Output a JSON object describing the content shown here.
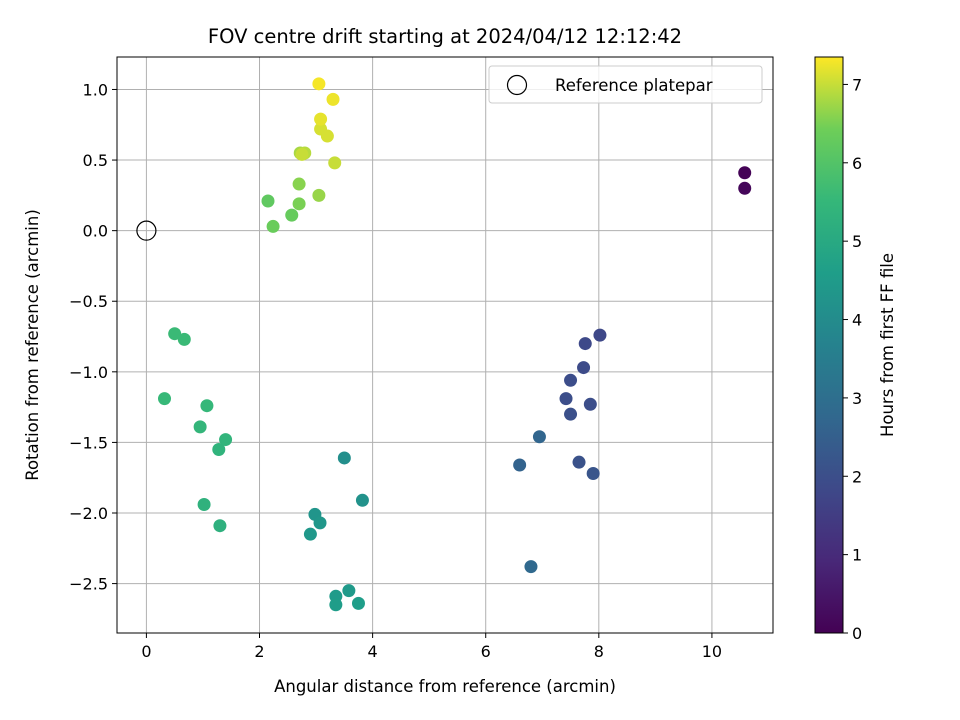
{
  "chart_data": {
    "type": "scatter",
    "title": "FOV centre drift starting at 2024/04/12 12:12:42",
    "xlabel": "Angular distance from reference (arcmin)",
    "ylabel": "Rotation from reference (arcmin)",
    "xlim": [
      -0.52,
      11.08
    ],
    "ylim": [
      -2.85,
      1.23
    ],
    "xticks": [
      0,
      2,
      4,
      6,
      8,
      10
    ],
    "xtick_labels": [
      "0",
      "2",
      "4",
      "6",
      "8",
      "10"
    ],
    "yticks": [
      1.0,
      0.5,
      0.0,
      -0.5,
      -1.0,
      -1.5,
      -2.0,
      -2.5
    ],
    "ytick_labels": [
      "1.0",
      "0.5",
      "0.0",
      "−0.5",
      "−1.0",
      "−1.5",
      "−2.0",
      "−2.5"
    ],
    "grid": true,
    "legend": {
      "position": "top-right",
      "entries": [
        "Reference platepar"
      ]
    },
    "reference_point": {
      "x": 0,
      "y": 0
    },
    "colorbar": {
      "label": "Hours from first FF file",
      "colormap": "viridis",
      "range": [
        0,
        7.35
      ],
      "ticks": [
        0,
        1,
        2,
        3,
        4,
        5,
        6,
        7
      ],
      "tick_labels": [
        "0",
        "1",
        "2",
        "3",
        "4",
        "5",
        "6",
        "7"
      ]
    },
    "points": [
      {
        "x": 10.58,
        "y": 0.41,
        "c": 0.05
      },
      {
        "x": 10.58,
        "y": 0.3,
        "c": 0.15
      },
      {
        "x": 8.02,
        "y": -0.74,
        "c": 1.8
      },
      {
        "x": 7.76,
        "y": -0.8,
        "c": 1.85
      },
      {
        "x": 7.73,
        "y": -0.97,
        "c": 1.9
      },
      {
        "x": 7.5,
        "y": -1.06,
        "c": 1.95
      },
      {
        "x": 7.42,
        "y": -1.19,
        "c": 2.0
      },
      {
        "x": 7.85,
        "y": -1.23,
        "c": 2.0
      },
      {
        "x": 7.5,
        "y": -1.3,
        "c": 2.05
      },
      {
        "x": 7.65,
        "y": -1.64,
        "c": 2.1
      },
      {
        "x": 7.9,
        "y": -1.72,
        "c": 2.2
      },
      {
        "x": 6.95,
        "y": -1.46,
        "c": 2.7
      },
      {
        "x": 6.6,
        "y": -1.66,
        "c": 2.6
      },
      {
        "x": 6.8,
        "y": -2.38,
        "c": 2.8
      },
      {
        "x": 3.5,
        "y": -1.61,
        "c": 4.1
      },
      {
        "x": 3.82,
        "y": -1.91,
        "c": 4.2
      },
      {
        "x": 2.98,
        "y": -2.01,
        "c": 4.3
      },
      {
        "x": 3.07,
        "y": -2.07,
        "c": 4.35
      },
      {
        "x": 2.9,
        "y": -2.15,
        "c": 4.4
      },
      {
        "x": 3.58,
        "y": -2.55,
        "c": 4.45
      },
      {
        "x": 3.35,
        "y": -2.59,
        "c": 4.5
      },
      {
        "x": 3.35,
        "y": -2.65,
        "c": 4.55
      },
      {
        "x": 3.75,
        "y": -2.64,
        "c": 4.6
      },
      {
        "x": 0.5,
        "y": -0.73,
        "c": 5.6
      },
      {
        "x": 0.67,
        "y": -0.77,
        "c": 5.6
      },
      {
        "x": 0.32,
        "y": -1.19,
        "c": 5.55
      },
      {
        "x": 1.07,
        "y": -1.24,
        "c": 5.5
      },
      {
        "x": 0.95,
        "y": -1.39,
        "c": 5.45
      },
      {
        "x": 1.4,
        "y": -1.48,
        "c": 5.4
      },
      {
        "x": 1.28,
        "y": -1.55,
        "c": 5.35
      },
      {
        "x": 1.02,
        "y": -1.94,
        "c": 5.3
      },
      {
        "x": 1.3,
        "y": -2.09,
        "c": 5.25
      },
      {
        "x": 2.15,
        "y": 0.21,
        "c": 6.2
      },
      {
        "x": 2.57,
        "y": 0.11,
        "c": 6.3
      },
      {
        "x": 2.24,
        "y": 0.03,
        "c": 6.35
      },
      {
        "x": 2.7,
        "y": 0.33,
        "c": 6.6
      },
      {
        "x": 2.7,
        "y": 0.19,
        "c": 6.5
      },
      {
        "x": 3.05,
        "y": 0.25,
        "c": 6.7
      },
      {
        "x": 2.72,
        "y": 0.55,
        "c": 6.8
      },
      {
        "x": 2.8,
        "y": 0.55,
        "c": 6.9
      },
      {
        "x": 2.75,
        "y": 0.54,
        "c": 7.0
      },
      {
        "x": 3.33,
        "y": 0.48,
        "c": 7.0
      },
      {
        "x": 3.08,
        "y": 0.72,
        "c": 7.1
      },
      {
        "x": 3.2,
        "y": 0.67,
        "c": 7.1
      },
      {
        "x": 3.08,
        "y": 0.79,
        "c": 7.2
      },
      {
        "x": 3.3,
        "y": 0.93,
        "c": 7.25
      },
      {
        "x": 3.05,
        "y": 1.04,
        "c": 7.3
      }
    ]
  }
}
